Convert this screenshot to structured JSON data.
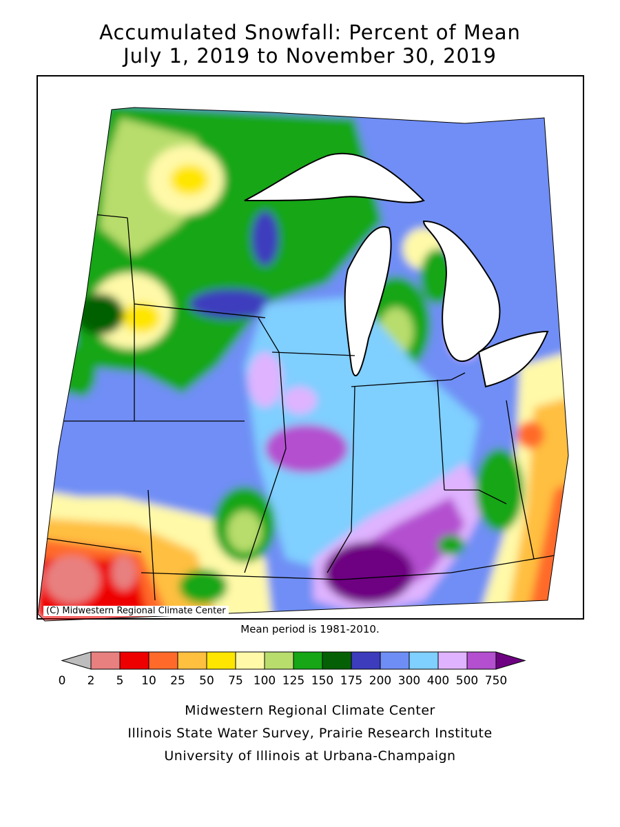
{
  "header": {
    "title": "Accumulated Snowfall: Percent of Mean",
    "subtitle": "July 1, 2019 to November 30, 2019"
  },
  "map": {
    "copyright": "(C) Midwestern Regional Climate Center",
    "note": "Mean period is 1981-2010."
  },
  "legend": {
    "labels": [
      "0",
      "2",
      "5",
      "10",
      "25",
      "50",
      "75",
      "100",
      "125",
      "150",
      "175",
      "200",
      "300",
      "400",
      "500",
      "750"
    ],
    "colors": [
      "#bdbdbd",
      "#e88080",
      "#ee0000",
      "#ff6a2a",
      "#ffbf3f",
      "#ffe600",
      "#fff9a8",
      "#b8dd6c",
      "#16a616",
      "#056005",
      "#3c3cbd",
      "#6f8ef5",
      "#7fcfff",
      "#dfb3ff",
      "#b44fd0",
      "#6e0082"
    ]
  },
  "credits": [
    "Midwestern Regional Climate Center",
    "Illinois State Water Survey, Prairie Research Institute",
    "University of Illinois at Urbana-Champaign"
  ]
}
